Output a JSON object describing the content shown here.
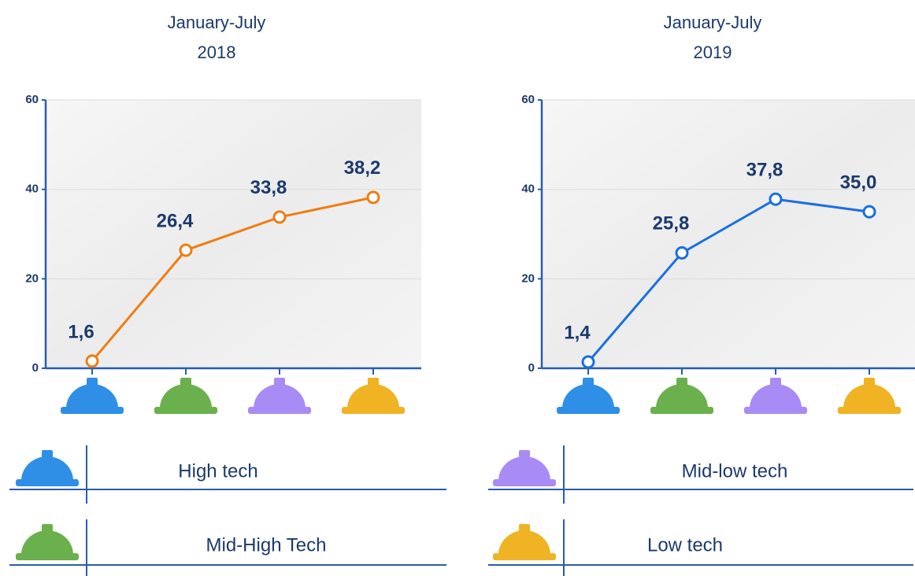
{
  "chart_data": [
    {
      "type": "line",
      "title": "January-July",
      "subtitle": "2018",
      "categories": [
        null,
        null,
        null,
        null
      ],
      "category_colors": [
        "#2f8fe6",
        "#6ab04c",
        "#a98bf5",
        "#f0b323"
      ],
      "series": [
        {
          "color": "#ee7d12",
          "values": [
            1.6,
            26.4,
            33.8,
            38.2
          ],
          "value_labels": [
            "1,6",
            "26,4",
            "33,8",
            "38,2"
          ]
        }
      ],
      "ylim": [
        0,
        60
      ],
      "yticks": [
        0,
        20,
        40,
        60
      ],
      "grid": true
    },
    {
      "type": "line",
      "title": "January-July",
      "subtitle": "2019",
      "categories": [
        null,
        null,
        null,
        null
      ],
      "category_colors": [
        "#2f8fe6",
        "#6ab04c",
        "#a98bf5",
        "#f0b323"
      ],
      "series": [
        {
          "color": "#1a6fdf",
          "values": [
            1.4,
            25.8,
            37.8,
            35.0
          ],
          "value_labels": [
            "1,4",
            "25,8",
            "37,8",
            "35,0"
          ]
        }
      ],
      "ylim": [
        0,
        60
      ],
      "yticks": [
        0,
        20,
        40,
        60
      ],
      "grid": true
    }
  ],
  "legend": [
    {
      "label": "High tech",
      "color": "#2f8fe6"
    },
    {
      "label": "Mid-High Tech",
      "color": "#6ab04c"
    },
    {
      "label": "Mid-low tech",
      "color": "#a98bf5"
    },
    {
      "label": "Low tech",
      "color": "#f0b323"
    }
  ]
}
